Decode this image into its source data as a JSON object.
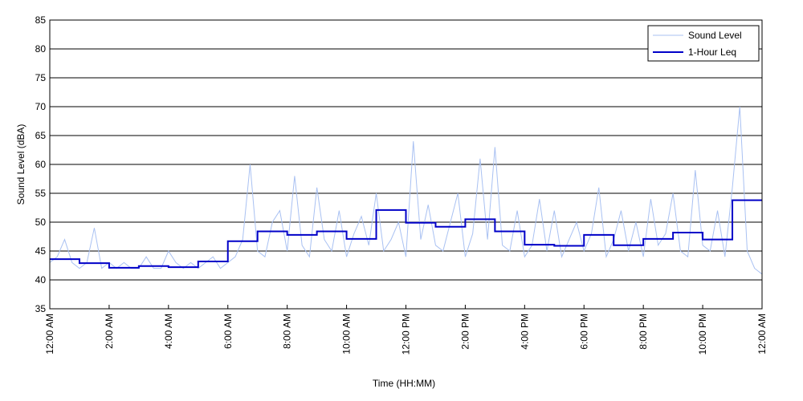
{
  "chart_data": {
    "type": "line",
    "xlabel": "Time (HH:MM)",
    "ylabel": "Sound Level (dBA)",
    "xlim": [
      0,
      24
    ],
    "ylim": [
      35,
      85
    ],
    "yticks": [
      35,
      40,
      45,
      50,
      55,
      60,
      65,
      70,
      75,
      80,
      85
    ],
    "xticks": [
      {
        "value": 0,
        "label": "12:00 AM"
      },
      {
        "value": 2,
        "label": "2:00 AM"
      },
      {
        "value": 4,
        "label": "4:00 AM"
      },
      {
        "value": 6,
        "label": "6:00 AM"
      },
      {
        "value": 8,
        "label": "8:00 AM"
      },
      {
        "value": 10,
        "label": "10:00 AM"
      },
      {
        "value": 12,
        "label": "12:00 PM"
      },
      {
        "value": 14,
        "label": "2:00 PM"
      },
      {
        "value": 16,
        "label": "4:00 PM"
      },
      {
        "value": 18,
        "label": "6:00 PM"
      },
      {
        "value": 20,
        "label": "8:00 PM"
      },
      {
        "value": 22,
        "label": "10:00 PM"
      },
      {
        "value": 24,
        "label": "12:00 AM"
      }
    ],
    "grid": true,
    "legend": "upper right",
    "series": [
      {
        "name": "Sound Level",
        "color": "#a9c1f2",
        "style": "line",
        "x": [
          0,
          0.25,
          0.5,
          0.75,
          1,
          1.25,
          1.5,
          1.75,
          2,
          2.25,
          2.5,
          2.75,
          3,
          3.25,
          3.5,
          3.75,
          4,
          4.25,
          4.5,
          4.75,
          5,
          5.25,
          5.5,
          5.75,
          6,
          6.25,
          6.5,
          6.75,
          7,
          7.25,
          7.5,
          7.75,
          8,
          8.25,
          8.5,
          8.75,
          9,
          9.25,
          9.5,
          9.75,
          10,
          10.25,
          10.5,
          10.75,
          11,
          11.25,
          11.5,
          11.75,
          12,
          12.25,
          12.5,
          12.75,
          13,
          13.25,
          13.5,
          13.75,
          14,
          14.25,
          14.5,
          14.75,
          15,
          15.25,
          15.5,
          15.75,
          16,
          16.25,
          16.5,
          16.75,
          17,
          17.25,
          17.5,
          17.75,
          18,
          18.25,
          18.5,
          18.75,
          19,
          19.25,
          19.5,
          19.75,
          20,
          20.25,
          20.5,
          20.75,
          21,
          21.25,
          21.5,
          21.75,
          22,
          22.25,
          22.5,
          22.75,
          23,
          23.25,
          23.5,
          23.75,
          24
        ],
        "values": [
          43,
          44,
          47,
          43,
          42,
          43,
          49,
          42,
          43,
          42,
          43,
          42,
          42,
          44,
          42,
          42,
          45,
          43,
          42,
          43,
          42,
          43,
          44,
          42,
          43,
          44,
          47,
          60,
          45,
          44,
          50,
          52,
          45,
          58,
          46,
          44,
          56,
          47,
          45,
          52,
          44,
          48,
          51,
          46,
          55,
          45,
          47,
          50,
          44,
          64,
          47,
          53,
          46,
          45,
          50,
          55,
          44,
          48,
          61,
          47,
          63,
          46,
          45,
          52,
          44,
          46,
          54,
          45,
          52,
          44,
          47,
          50,
          45,
          48,
          56,
          44,
          47,
          52,
          45,
          50,
          44,
          54,
          46,
          48,
          55,
          45,
          44,
          59,
          46,
          45,
          52,
          44,
          56,
          70,
          45,
          42,
          41
        ]
      },
      {
        "name": "1-Hour Leq",
        "color": "#0000c8",
        "style": "step",
        "x": [
          0,
          1,
          2,
          3,
          4,
          5,
          6,
          7,
          8,
          9,
          10,
          11,
          12,
          13,
          14,
          15,
          16,
          17,
          18,
          19,
          20,
          21,
          22,
          23
        ],
        "values": [
          43.6,
          42.9,
          42.1,
          42.4,
          42.2,
          43.2,
          46.7,
          48.4,
          47.8,
          48.4,
          47.1,
          52.1,
          49.9,
          49.2,
          50.5,
          48.4,
          46.1,
          45.9,
          47.8,
          46.0,
          47.1,
          48.2,
          47.0,
          53.8
        ]
      }
    ]
  }
}
